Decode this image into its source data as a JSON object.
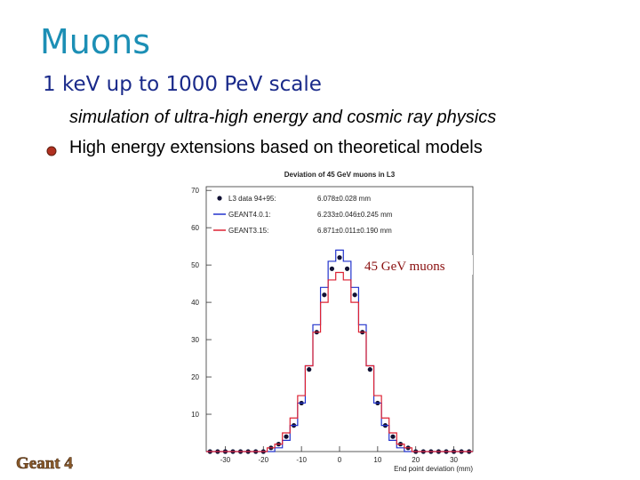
{
  "slide": {
    "title": "Muons",
    "subtitle": "1 keV up to 1000 PeV scale",
    "bullets": [
      "simulation of ultra-high energy and cosmic ray physics",
      "High energy extensions based on theoretical models"
    ],
    "logo": "Geant 4"
  },
  "chart_data": {
    "type": "histogram",
    "title": "Deviation of 45 GeV muons in L3",
    "x_label": "End point deviation (mm)",
    "annotation": "45 GeV muons",
    "bins": [
      -35,
      -33,
      -31,
      -29,
      -27,
      -25,
      -23,
      -21,
      -19,
      -17,
      -15,
      -13,
      -11,
      -9,
      -7,
      -5,
      -3,
      -1,
      1,
      3,
      5,
      7,
      9,
      11,
      13,
      15,
      17,
      19,
      21,
      23,
      25,
      27,
      29,
      31,
      33,
      35
    ],
    "series": [
      {
        "name": "L3 data 94+95:",
        "legend_value": "6.078±0.028 mm",
        "color": "#111133",
        "style": "points",
        "values": [
          0,
          0,
          0,
          0,
          0,
          0,
          0,
          0,
          1,
          2,
          4,
          7,
          13,
          22,
          32,
          42,
          49,
          52,
          49,
          42,
          32,
          22,
          13,
          7,
          4,
          2,
          1,
          0,
          0,
          0,
          0,
          0,
          0,
          0,
          0
        ]
      },
      {
        "name": "GEANT4.0.1:",
        "legend_value": "6.233±0.046±0.245 mm",
        "color": "#2233cc",
        "style": "step",
        "values": [
          0,
          0,
          0,
          0,
          0,
          0,
          0,
          0,
          0,
          1,
          3,
          7,
          13,
          23,
          34,
          44,
          51,
          54,
          51,
          44,
          34,
          23,
          13,
          7,
          3,
          1,
          0,
          0,
          0,
          0,
          0,
          0,
          0,
          0,
          0
        ]
      },
      {
        "name": "GEANT3.15:",
        "legend_value": "6.871±0.011±0.190 mm",
        "color": "#dd2233",
        "style": "step",
        "values": [
          0,
          0,
          0,
          0,
          0,
          0,
          0,
          0,
          1,
          2,
          5,
          9,
          15,
          23,
          32,
          40,
          46,
          48,
          46,
          40,
          32,
          23,
          15,
          9,
          5,
          2,
          1,
          0,
          0,
          0,
          0,
          0,
          0,
          0,
          0
        ]
      }
    ],
    "xlim": [
      -35,
      35
    ],
    "xticks": [
      -30,
      -20,
      -10,
      0,
      10,
      20,
      30
    ],
    "ylim": [
      0,
      71
    ],
    "yticks": [
      10,
      20,
      30,
      40,
      50,
      60,
      70
    ]
  }
}
